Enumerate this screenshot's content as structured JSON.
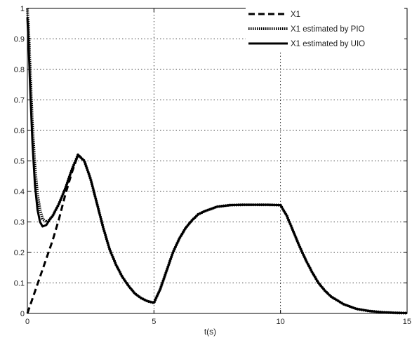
{
  "chart_data": {
    "type": "line",
    "xlabel": "t(s)",
    "ylabel": "",
    "xlim": [
      0,
      15
    ],
    "ylim": [
      0,
      1
    ],
    "xticks": [
      "0",
      "5",
      "10",
      "15"
    ],
    "yticks": [
      "0",
      "0.1",
      "0.2",
      "0.3",
      "0.4",
      "0.5",
      "0.6",
      "0.7",
      "0.8",
      "0.9",
      "1"
    ],
    "grid": true,
    "legend": "top-right",
    "series": [
      {
        "name": "X1",
        "style": "dashed",
        "color": "#000000",
        "x": [
          0,
          0.25,
          0.5,
          0.75,
          1.0,
          1.25,
          1.5,
          1.75,
          2.0,
          2.25,
          2.5,
          2.75,
          3.0,
          3.25,
          3.5,
          3.75,
          4.0,
          4.25,
          4.5,
          4.75,
          5.0,
          5.25,
          5.5,
          5.75,
          6.0,
          6.25,
          6.5,
          6.75,
          7.0,
          7.5,
          8.0,
          8.5,
          9.0,
          9.5,
          10.0,
          10.25,
          10.5,
          10.75,
          11.0,
          11.25,
          11.5,
          11.75,
          12.0,
          12.5,
          13.0,
          13.5,
          14.0,
          14.5,
          15.0
        ],
        "y": [
          0,
          0.06,
          0.12,
          0.18,
          0.24,
          0.31,
          0.39,
          0.46,
          0.52,
          0.5,
          0.44,
          0.36,
          0.28,
          0.21,
          0.16,
          0.12,
          0.09,
          0.065,
          0.05,
          0.04,
          0.035,
          0.08,
          0.14,
          0.2,
          0.245,
          0.28,
          0.305,
          0.325,
          0.335,
          0.35,
          0.355,
          0.356,
          0.356,
          0.356,
          0.355,
          0.32,
          0.27,
          0.22,
          0.175,
          0.135,
          0.1,
          0.075,
          0.055,
          0.03,
          0.015,
          0.008,
          0.004,
          0.002,
          0.001
        ]
      },
      {
        "name": "X1 estimated by PIO",
        "style": "dotted",
        "color": "#000000",
        "x": [
          0,
          0.05,
          0.1,
          0.2,
          0.3,
          0.4,
          0.5,
          0.6,
          0.75,
          0.9,
          1.0,
          1.25,
          1.5,
          1.75,
          2.0,
          2.25,
          2.5,
          2.75,
          3.0,
          3.25,
          3.5,
          3.75,
          4.0,
          4.25,
          4.5,
          4.75,
          5.0,
          5.25,
          5.5,
          5.75,
          6.0,
          6.25,
          6.5,
          6.75,
          7.0,
          7.5,
          8.0,
          8.5,
          9.0,
          9.5,
          10.0,
          10.25,
          10.5,
          10.75,
          11.0,
          11.25,
          11.5,
          11.75,
          12.0,
          12.5,
          13.0,
          13.5,
          14.0,
          14.5,
          15.0
        ],
        "y": [
          1.0,
          0.93,
          0.82,
          0.62,
          0.48,
          0.39,
          0.34,
          0.31,
          0.3,
          0.31,
          0.32,
          0.36,
          0.41,
          0.47,
          0.52,
          0.5,
          0.44,
          0.36,
          0.28,
          0.21,
          0.16,
          0.12,
          0.09,
          0.065,
          0.05,
          0.04,
          0.035,
          0.08,
          0.14,
          0.2,
          0.245,
          0.28,
          0.305,
          0.325,
          0.335,
          0.35,
          0.355,
          0.356,
          0.356,
          0.356,
          0.355,
          0.32,
          0.27,
          0.22,
          0.175,
          0.135,
          0.1,
          0.075,
          0.055,
          0.03,
          0.015,
          0.008,
          0.004,
          0.002,
          0.001
        ]
      },
      {
        "name": "X1 estimated by UIO",
        "style": "solid",
        "color": "#000000",
        "x": [
          0,
          0.05,
          0.1,
          0.2,
          0.3,
          0.4,
          0.5,
          0.6,
          0.75,
          0.9,
          1.0,
          1.25,
          1.5,
          1.75,
          2.0,
          2.25,
          2.5,
          2.75,
          3.0,
          3.25,
          3.5,
          3.75,
          4.0,
          4.25,
          4.5,
          4.75,
          5.0,
          5.25,
          5.5,
          5.75,
          6.0,
          6.25,
          6.5,
          6.75,
          7.0,
          7.5,
          8.0,
          8.5,
          9.0,
          9.5,
          10.0,
          10.25,
          10.5,
          10.75,
          11.0,
          11.25,
          11.5,
          11.75,
          12.0,
          12.5,
          13.0,
          13.5,
          14.0,
          14.5,
          15.0
        ],
        "y": [
          0.97,
          0.88,
          0.76,
          0.56,
          0.42,
          0.34,
          0.3,
          0.285,
          0.29,
          0.31,
          0.32,
          0.36,
          0.41,
          0.47,
          0.52,
          0.5,
          0.44,
          0.36,
          0.28,
          0.21,
          0.16,
          0.12,
          0.09,
          0.065,
          0.05,
          0.04,
          0.035,
          0.08,
          0.14,
          0.2,
          0.245,
          0.28,
          0.305,
          0.325,
          0.335,
          0.35,
          0.355,
          0.356,
          0.356,
          0.356,
          0.355,
          0.32,
          0.27,
          0.22,
          0.175,
          0.135,
          0.1,
          0.075,
          0.055,
          0.03,
          0.015,
          0.008,
          0.004,
          0.002,
          0.001
        ]
      }
    ]
  }
}
